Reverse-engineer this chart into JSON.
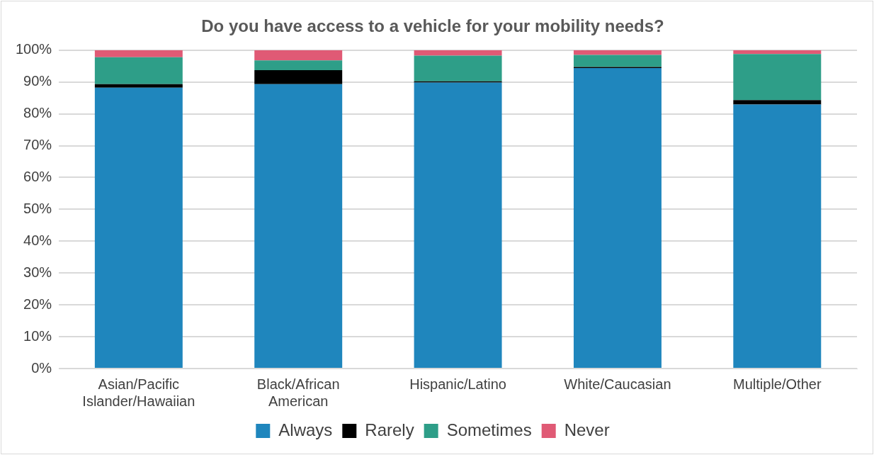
{
  "chart_data": {
    "type": "bar",
    "title": "Do you have access to a vehicle for your mobility needs?",
    "categories": [
      "Asian/Pacific Islander/Hawaiian",
      "Black/African American",
      "Hispanic/Latino",
      "White/Caucasian",
      "Multiple/Other"
    ],
    "series": [
      {
        "name": "Always",
        "color": "#1f86bd",
        "values": [
          88.2,
          89.3,
          89.8,
          94.4,
          82.9
        ]
      },
      {
        "name": "Rarely",
        "color": "#000000",
        "values": [
          1.1,
          4.4,
          0.4,
          0.3,
          1.4
        ]
      },
      {
        "name": "Sometimes",
        "color": "#2e9e88",
        "values": [
          8.5,
          3.1,
          8.1,
          3.8,
          14.5
        ]
      },
      {
        "name": "Never",
        "color": "#e05a75",
        "values": [
          2.2,
          3.2,
          1.7,
          1.5,
          1.2
        ]
      }
    ],
    "stacked": true,
    "ylim": [
      0,
      100
    ],
    "yticks": [
      {
        "value": 0,
        "label": "0%"
      },
      {
        "value": 10,
        "label": "10%"
      },
      {
        "value": 20,
        "label": "20%"
      },
      {
        "value": 30,
        "label": "30%"
      },
      {
        "value": 40,
        "label": "40%"
      },
      {
        "value": 50,
        "label": "50%"
      },
      {
        "value": 60,
        "label": "60%"
      },
      {
        "value": 70,
        "label": "70%"
      },
      {
        "value": 80,
        "label": "80%"
      },
      {
        "value": 90,
        "label": "90%"
      },
      {
        "value": 100,
        "label": "100%"
      }
    ],
    "grid": "y",
    "legend": "bottom"
  }
}
